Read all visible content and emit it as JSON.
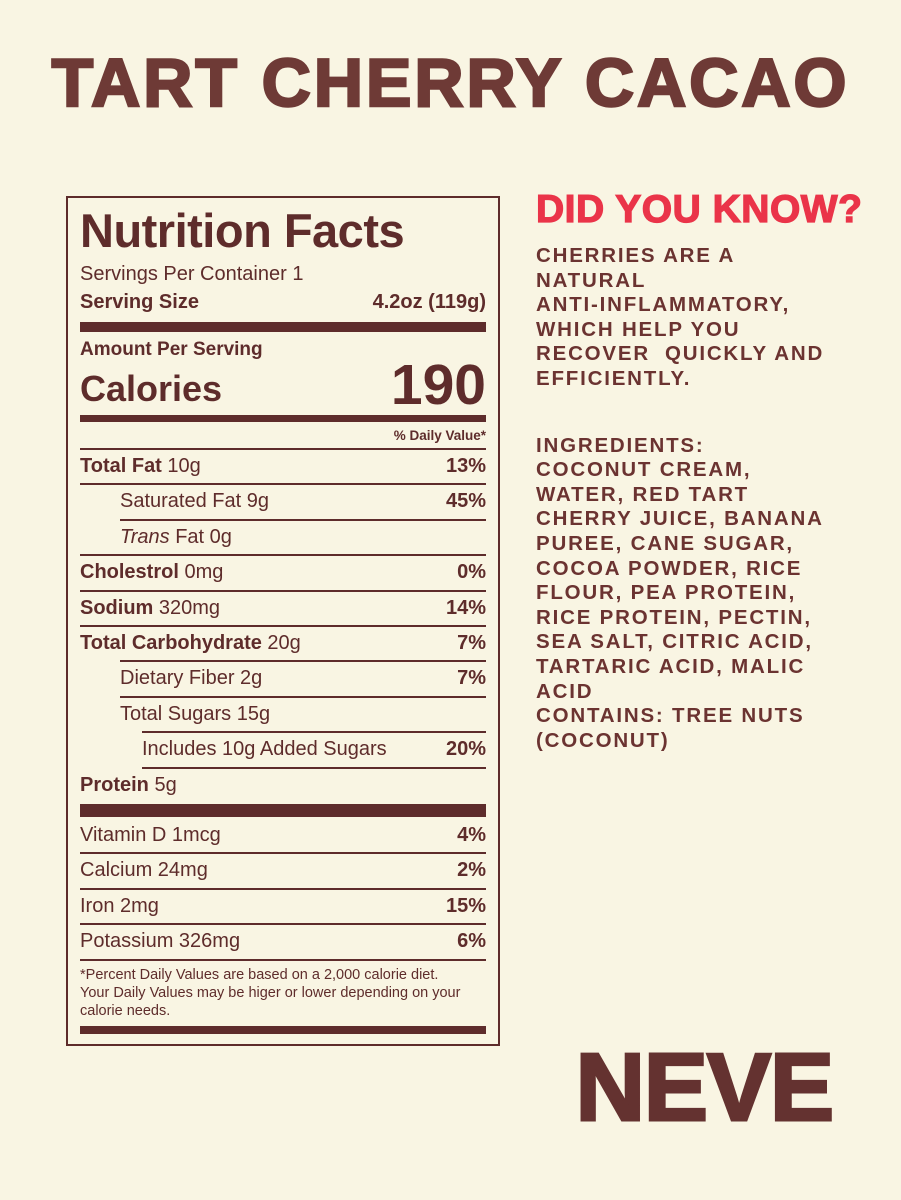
{
  "colors": {
    "background": "#f9f5e3",
    "maroon": "#5e2c2b",
    "display_maroon": "#6e3a36",
    "red": "#ea3449"
  },
  "title": "TART CHERRY CACAO",
  "brand": "NEVE",
  "nutrition": {
    "heading": "Nutrition Facts",
    "servings_per_container": "Servings Per Container 1",
    "serving_size_label": "Serving Size",
    "serving_size_value": "4.2oz (119g)",
    "amount_per_serving": "Amount Per Serving",
    "calories_label": "Calories",
    "calories_value": "190",
    "daily_value_header": "% Daily Value*",
    "rows": [
      {
        "name": "Total Fat",
        "rest": " 10g",
        "dv": "13%"
      },
      {
        "name": "",
        "rest": "Saturated Fat 9g",
        "dv": "45%"
      },
      {
        "name": "",
        "italic": "Trans",
        "rest": " Fat 0g",
        "dv": ""
      },
      {
        "name": "Cholestrol",
        "rest": " 0mg",
        "dv": "0%"
      },
      {
        "name": "Sodium",
        "rest": " 320mg",
        "dv": "14%"
      },
      {
        "name": "Total Carbohydrate",
        "rest": " 20g",
        "dv": "7%"
      },
      {
        "name": "",
        "rest": "Dietary Fiber 2g",
        "dv": "7%"
      },
      {
        "name": "",
        "rest": "Total Sugars 15g",
        "dv": ""
      },
      {
        "name": "",
        "rest": "Includes 10g Added Sugars",
        "dv": "20%"
      },
      {
        "name": "Protein",
        "rest": " 5g",
        "dv": ""
      }
    ],
    "vitamin_rows": [
      {
        "rest": "Vitamin D 1mcg",
        "dv": "4%"
      },
      {
        "rest": "Calcium 24mg",
        "dv": "2%"
      },
      {
        "rest": "Iron 2mg",
        "dv": "15%"
      },
      {
        "rest": "Potassium 326mg",
        "dv": "6%"
      }
    ],
    "footnote": [
      "*Percent Daily Values are based on a 2,000 calorie diet.",
      "Your Daily Values may be higer or lower depending on your",
      "calorie needs."
    ]
  },
  "did_you_know": {
    "heading": "DID YOU KNOW?",
    "lines": [
      "CHERRIES ARE A",
      "NATURAL",
      "ANTI-INFLAMMATORY,",
      "WHICH HELP YOU",
      "RECOVER  QUICKLY AND",
      "EFFICIENTLY."
    ]
  },
  "ingredients": {
    "heading": "INGREDIENTS:",
    "lines": [
      "COCONUT CREAM,",
      "WATER, RED TART",
      "CHERRY JUICE, BANANA",
      "PUREE, CANE SUGAR,",
      "COCOA POWDER, RICE",
      "FLOUR, PEA PROTEIN,",
      "RICE PROTEIN, PECTIN,",
      "SEA SALT, CITRIC ACID,",
      "TARTARIC ACID, MALIC",
      "ACID",
      "CONTAINS: TREE NUTS",
      "(COCONUT)"
    ]
  }
}
